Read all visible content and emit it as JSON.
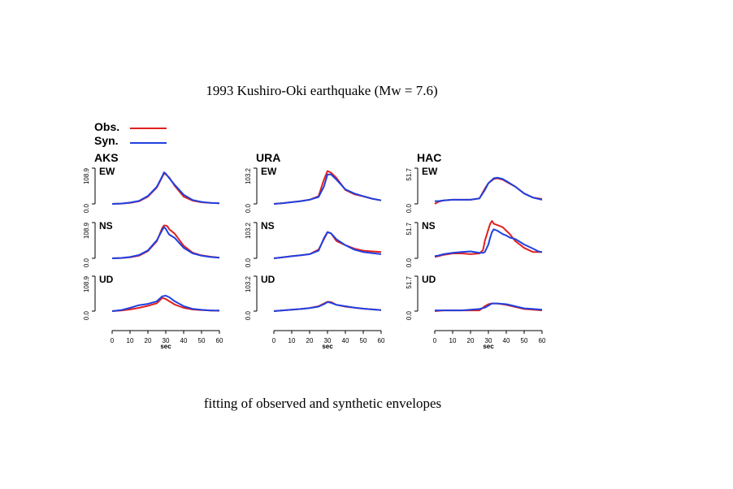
{
  "title": "1993 Kushiro-Oki earthquake (Mw = 7.6)",
  "caption": "fitting of observed and synthetic envelopes",
  "legend": [
    {
      "label": "Obs.",
      "color": "#e02020"
    },
    {
      "label": "Syn.",
      "color": "#2040e0"
    }
  ],
  "chart_data": [
    {
      "type": "line",
      "station": "AKS",
      "xlabel": "sec",
      "xlim": [
        0,
        60
      ],
      "xticks": [
        "0",
        "10",
        "20",
        "30",
        "40",
        "50",
        "60"
      ],
      "panels": [
        {
          "component": "EW",
          "ylim": [
            0,
            108.9
          ],
          "yticks": [
            "0.0",
            "108.9"
          ],
          "x": [
            0,
            5,
            10,
            15,
            20,
            25,
            28,
            29,
            30,
            32,
            35,
            40,
            45,
            50,
            55,
            60
          ],
          "series": [
            {
              "name": "Obs.",
              "values": [
                0,
                1,
                3,
                8,
                22,
                50,
                82,
                92,
                90,
                80,
                55,
                22,
                10,
                5,
                3,
                2
              ]
            },
            {
              "name": "Syn.",
              "values": [
                0,
                1,
                4,
                9,
                24,
                52,
                84,
                96,
                92,
                78,
                58,
                28,
                12,
                6,
                3,
                2
              ]
            }
          ]
        },
        {
          "component": "NS",
          "ylim": [
            0,
            108.9
          ],
          "yticks": [
            "0.0",
            "108.9"
          ],
          "x": [
            0,
            5,
            10,
            15,
            20,
            25,
            28,
            29,
            30,
            31,
            32,
            35,
            40,
            45,
            50,
            55,
            60
          ],
          "series": [
            {
              "name": "Obs.",
              "values": [
                0,
                1,
                3,
                8,
                22,
                52,
                92,
                100,
                100,
                97,
                88,
                75,
                38,
                17,
                9,
                5,
                2
              ]
            },
            {
              "name": "Syn.",
              "values": [
                0,
                1,
                4,
                10,
                24,
                55,
                86,
                95,
                90,
                80,
                72,
                62,
                32,
                15,
                8,
                4,
                2
              ]
            }
          ]
        },
        {
          "component": "UD",
          "ylim": [
            0,
            108.9
          ],
          "yticks": [
            "0.0",
            "108.9"
          ],
          "x": [
            0,
            5,
            10,
            15,
            20,
            25,
            28,
            30,
            32,
            35,
            40,
            45,
            50,
            55,
            60
          ],
          "series": [
            {
              "name": "Obs.",
              "values": [
                0,
                2,
                5,
                10,
                16,
                24,
                40,
                37,
                30,
                20,
                10,
                5,
                3,
                2,
                1
              ]
            },
            {
              "name": "Syn.",
              "values": [
                0,
                3,
                10,
                18,
                22,
                30,
                45,
                47,
                42,
                30,
                15,
                7,
                4,
                2,
                2
              ]
            }
          ]
        }
      ]
    },
    {
      "type": "line",
      "station": "URA",
      "xlabel": "sec",
      "xlim": [
        0,
        60
      ],
      "xticks": [
        "0",
        "10",
        "20",
        "30",
        "40",
        "50",
        "60"
      ],
      "panels": [
        {
          "component": "EW",
          "ylim": [
            0,
            103.2
          ],
          "yticks": [
            "0.0",
            "103.2"
          ],
          "x": [
            0,
            5,
            10,
            15,
            20,
            25,
            28,
            30,
            32,
            35,
            40,
            45,
            50,
            55,
            60
          ],
          "series": [
            {
              "name": "Obs.",
              "values": [
                0,
                2,
                5,
                8,
                12,
                22,
                70,
                95,
                90,
                75,
                40,
                28,
                22,
                15,
                10
              ]
            },
            {
              "name": "Syn.",
              "values": [
                0,
                2,
                5,
                8,
                12,
                20,
                50,
                85,
                85,
                70,
                42,
                30,
                22,
                15,
                10
              ]
            }
          ]
        },
        {
          "component": "NS",
          "ylim": [
            0,
            103.2
          ],
          "yticks": [
            "0.0",
            "103.2"
          ],
          "x": [
            0,
            5,
            10,
            15,
            20,
            25,
            28,
            30,
            32,
            35,
            40,
            45,
            50,
            55,
            60
          ],
          "series": [
            {
              "name": "Obs.",
              "values": [
                0,
                3,
                6,
                9,
                12,
                25,
                55,
                75,
                72,
                50,
                38,
                28,
                22,
                20,
                18
              ]
            },
            {
              "name": "Syn.",
              "values": [
                0,
                3,
                6,
                9,
                12,
                22,
                58,
                76,
                72,
                55,
                38,
                25,
                18,
                15,
                12
              ]
            }
          ]
        },
        {
          "component": "UD",
          "ylim": [
            0,
            103.2
          ],
          "yticks": [
            "0.0",
            "103.2"
          ],
          "x": [
            0,
            5,
            10,
            15,
            20,
            25,
            28,
            30,
            32,
            35,
            40,
            45,
            50,
            55,
            60
          ],
          "series": [
            {
              "name": "Obs.",
              "values": [
                0,
                2,
                4,
                6,
                9,
                14,
                22,
                27,
                26,
                18,
                13,
                10,
                7,
                5,
                3
              ]
            },
            {
              "name": "Syn.",
              "values": [
                0,
                2,
                4,
                6,
                9,
                13,
                20,
                26,
                24,
                18,
                14,
                10,
                7,
                5,
                3
              ]
            }
          ]
        }
      ]
    },
    {
      "type": "line",
      "station": "HAC",
      "xlabel": "sec",
      "xlim": [
        0,
        60
      ],
      "xticks": [
        "0",
        "10",
        "20",
        "30",
        "40",
        "50",
        "60"
      ],
      "panels": [
        {
          "component": "EW",
          "ylim": [
            0,
            51.7
          ],
          "yticks": [
            "0.0",
            "51.7"
          ],
          "x": [
            0,
            2,
            5,
            10,
            15,
            20,
            25,
            28,
            30,
            33,
            35,
            38,
            40,
            45,
            50,
            55,
            60
          ],
          "series": [
            {
              "name": "Obs.",
              "values": [
                0,
                3,
                5,
                6,
                6,
                6,
                8,
                22,
                30,
                36,
                37,
                35,
                32,
                25,
                15,
                9,
                7
              ]
            },
            {
              "name": "Syn.",
              "values": [
                4,
                4,
                5,
                6,
                6,
                6,
                8,
                20,
                30,
                37,
                38,
                36,
                33,
                25,
                15,
                9,
                6
              ]
            }
          ]
        },
        {
          "component": "NS",
          "ylim": [
            0,
            51.7
          ],
          "yticks": [
            "0.0",
            "51.7"
          ],
          "x": [
            0,
            2,
            5,
            10,
            15,
            20,
            25,
            27,
            28,
            30,
            31,
            32,
            33,
            35,
            38,
            40,
            42,
            45,
            50,
            55,
            58,
            60
          ],
          "series": [
            {
              "name": "Obs.",
              "values": [
                2,
                3,
                5,
                7,
                7,
                6,
                7,
                12,
                25,
                42,
                50,
                54,
                50,
                48,
                45,
                40,
                35,
                25,
                15,
                9,
                9,
                9
              ]
            },
            {
              "name": "Syn.",
              "values": [
                3,
                4,
                6,
                8,
                9,
                10,
                8,
                8,
                9,
                20,
                30,
                38,
                42,
                40,
                35,
                33,
                30,
                28,
                20,
                14,
                10,
                9
              ]
            }
          ]
        },
        {
          "component": "UD",
          "ylim": [
            0,
            51.7
          ],
          "yticks": [
            "0.0",
            "51.7"
          ],
          "x": [
            0,
            5,
            10,
            15,
            20,
            25,
            28,
            30,
            32,
            35,
            40,
            45,
            50,
            55,
            60
          ],
          "series": [
            {
              "name": "Obs.",
              "values": [
                0,
                1,
                1,
                1,
                1,
                1,
                7,
                10,
                11,
                11,
                9,
                6,
                3,
                2,
                1
              ]
            },
            {
              "name": "Syn.",
              "values": [
                1,
                1,
                1,
                1,
                2,
                3,
                5,
                8,
                11,
                11,
                10,
                7,
                4,
                3,
                2
              ]
            }
          ]
        }
      ]
    }
  ]
}
